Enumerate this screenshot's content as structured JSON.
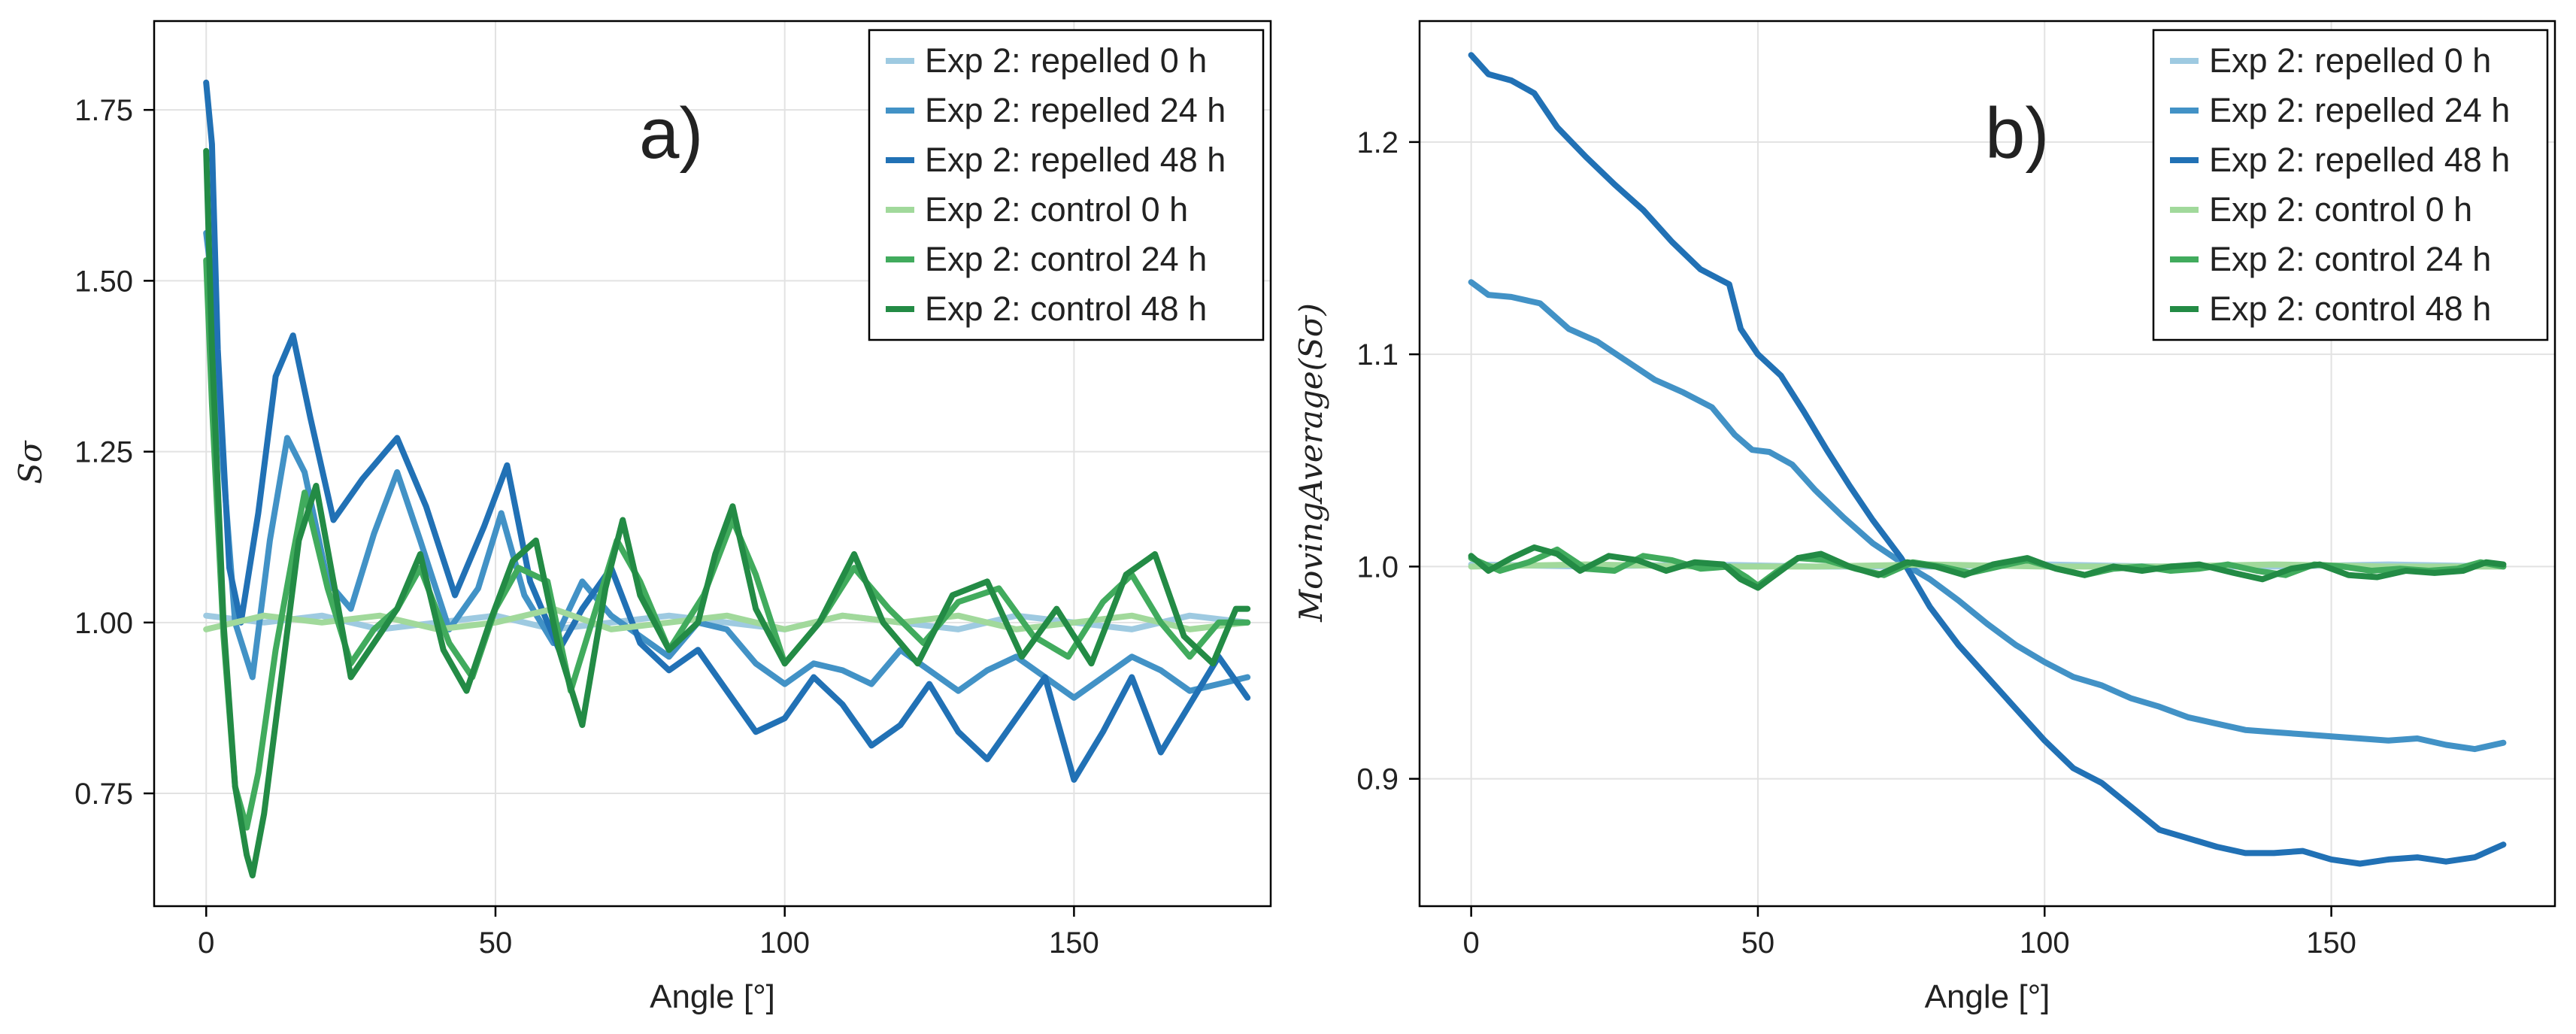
{
  "chart_data": [
    {
      "type": "line",
      "panel_label": "a)",
      "xlabel": "Angle [°]",
      "ylabel": "Sσ",
      "xlim": [
        -9,
        184
      ],
      "ylim": [
        0.585,
        1.88
      ],
      "xticks": [
        0,
        50,
        100,
        150
      ],
      "yticks": [
        0.75,
        1.0,
        1.25,
        1.5,
        1.75
      ],
      "ytick_labels": [
        "0.75",
        "1.00",
        "1.25",
        "1.50",
        "1.75"
      ],
      "grid": true,
      "legend_position": "top-right",
      "series": [
        {
          "name": "Exp 2: repelled 0 h",
          "color": "#9ecae1",
          "x": [
            0,
            10,
            20,
            30,
            40,
            50,
            60,
            70,
            80,
            90,
            100,
            110,
            120,
            130,
            140,
            150,
            160,
            170,
            180
          ],
          "y": [
            1.01,
            1.0,
            1.01,
            0.99,
            1.0,
            1.01,
            0.99,
            1.0,
            1.01,
            1.0,
            0.99,
            1.01,
            1.0,
            0.99,
            1.01,
            1.0,
            0.99,
            1.01,
            1.0
          ]
        },
        {
          "name": "Exp 2: repelled 24 h",
          "color": "#4292c6",
          "x": [
            0,
            1,
            3,
            5,
            8,
            11,
            14,
            17,
            21,
            25,
            29,
            33,
            37,
            42,
            47,
            51,
            55,
            60,
            65,
            70,
            75,
            80,
            85,
            90,
            95,
            100,
            105,
            110,
            115,
            120,
            125,
            130,
            135,
            140,
            145,
            150,
            155,
            160,
            165,
            170,
            175,
            180
          ],
          "y": [
            1.57,
            1.5,
            1.22,
            1.0,
            0.92,
            1.12,
            1.27,
            1.22,
            1.06,
            1.02,
            1.13,
            1.22,
            1.12,
            0.99,
            1.05,
            1.16,
            1.04,
            0.97,
            1.06,
            1.01,
            0.98,
            0.95,
            1.0,
            0.99,
            0.94,
            0.91,
            0.94,
            0.93,
            0.91,
            0.96,
            0.93,
            0.9,
            0.93,
            0.95,
            0.92,
            0.89,
            0.92,
            0.95,
            0.93,
            0.9,
            0.91,
            0.92
          ]
        },
        {
          "name": "Exp 2: repelled 48 h",
          "color": "#2171b5",
          "x": [
            0,
            1,
            2,
            4,
            6,
            9,
            12,
            15,
            18,
            22,
            27,
            33,
            38,
            43,
            48,
            52,
            56,
            61,
            65,
            70,
            75,
            80,
            85,
            90,
            95,
            100,
            105,
            110,
            115,
            120,
            125,
            130,
            135,
            140,
            145,
            150,
            155,
            160,
            165,
            170,
            175,
            180
          ],
          "y": [
            1.79,
            1.7,
            1.4,
            1.08,
            1.0,
            1.16,
            1.36,
            1.42,
            1.3,
            1.15,
            1.21,
            1.27,
            1.17,
            1.04,
            1.14,
            1.23,
            1.06,
            0.96,
            1.02,
            1.08,
            0.97,
            0.93,
            0.96,
            0.9,
            0.84,
            0.86,
            0.92,
            0.88,
            0.82,
            0.85,
            0.91,
            0.84,
            0.8,
            0.86,
            0.92,
            0.77,
            0.84,
            0.92,
            0.81,
            0.88,
            0.95,
            0.89
          ]
        },
        {
          "name": "Exp 2: control 0 h",
          "color": "#a1d99b",
          "x": [
            0,
            10,
            20,
            30,
            40,
            50,
            60,
            70,
            80,
            90,
            100,
            110,
            120,
            130,
            140,
            150,
            160,
            170,
            180
          ],
          "y": [
            0.99,
            1.01,
            1.0,
            1.01,
            0.99,
            1.0,
            1.02,
            0.99,
            1.0,
            1.01,
            0.99,
            1.01,
            1.0,
            1.01,
            0.99,
            1.0,
            1.01,
            0.99,
            1.0
          ]
        },
        {
          "name": "Exp 2: control 24 h",
          "color": "#41ab5d",
          "x": [
            0,
            1,
            3,
            5,
            7,
            9,
            12,
            15,
            17,
            21,
            25,
            29,
            33,
            37,
            42,
            46,
            50,
            54,
            59,
            63,
            67,
            71,
            75,
            80,
            86,
            91,
            95,
            100,
            106,
            112,
            118,
            124,
            130,
            137,
            143,
            149,
            155,
            160,
            165,
            170,
            175,
            180
          ],
          "y": [
            1.53,
            1.32,
            0.98,
            0.76,
            0.7,
            0.78,
            0.96,
            1.1,
            1.19,
            1.05,
            0.94,
            0.99,
            1.02,
            1.08,
            0.97,
            0.92,
            1.02,
            1.08,
            1.06,
            0.9,
            1.01,
            1.12,
            1.06,
            0.96,
            1.04,
            1.15,
            1.07,
            0.94,
            1.0,
            1.08,
            1.02,
            0.97,
            1.03,
            1.05,
            0.98,
            0.95,
            1.03,
            1.07,
            1.0,
            0.95,
            1.0,
            1.0
          ]
        },
        {
          "name": "Exp 2: control 48 h",
          "color": "#238b45",
          "x": [
            0,
            1,
            3,
            5,
            7,
            8,
            10,
            13,
            16,
            19,
            22,
            25,
            29,
            33,
            37,
            41,
            45,
            49,
            53,
            57,
            61,
            65,
            69,
            72,
            75,
            80,
            85,
            88,
            91,
            95,
            100,
            106,
            112,
            117,
            123,
            129,
            135,
            141,
            147,
            153,
            159,
            164,
            169,
            174,
            178,
            180
          ],
          "y": [
            1.69,
            1.4,
            1.0,
            0.76,
            0.66,
            0.63,
            0.72,
            0.92,
            1.12,
            1.2,
            1.06,
            0.92,
            0.97,
            1.02,
            1.1,
            0.96,
            0.9,
            1.0,
            1.09,
            1.12,
            0.96,
            0.85,
            1.05,
            1.15,
            1.04,
            0.96,
            1.0,
            1.1,
            1.17,
            1.02,
            0.94,
            1.0,
            1.1,
            1.0,
            0.94,
            1.04,
            1.06,
            0.95,
            1.02,
            0.94,
            1.07,
            1.1,
            0.98,
            0.94,
            1.02,
            1.02
          ]
        }
      ]
    },
    {
      "type": "line",
      "panel_label": "b)",
      "xlabel": "Angle [°]",
      "ylabel": "MovingAverage(Sσ)",
      "xlim": [
        -9,
        189
      ],
      "ylim": [
        0.84,
        1.257
      ],
      "xticks": [
        0,
        50,
        100,
        150
      ],
      "yticks": [
        0.9,
        1.0,
        1.1,
        1.2
      ],
      "ytick_labels": [
        "0.9",
        "1.0",
        "1.1",
        "1.2"
      ],
      "grid": true,
      "legend_position": "top-right",
      "series": [
        {
          "name": "Exp 2: repelled 0 h",
          "color": "#9ecae1",
          "x": [
            0,
            20,
            40,
            60,
            80,
            100,
            120,
            140,
            160,
            180
          ],
          "y": [
            1.001,
            1.0,
            1.001,
            1.0,
            1.0,
            1.001,
            1.0,
            1.0,
            1.001,
            1.0
          ]
        },
        {
          "name": "Exp 2: repelled 24 h",
          "color": "#4292c6",
          "x": [
            0,
            3,
            7,
            12,
            17,
            22,
            27,
            32,
            37,
            42,
            46,
            49,
            52,
            56,
            60,
            65,
            70,
            75,
            80,
            85,
            90,
            95,
            100,
            105,
            110,
            115,
            120,
            125,
            130,
            135,
            140,
            145,
            150,
            155,
            160,
            165,
            170,
            175,
            180
          ],
          "y": [
            1.134,
            1.128,
            1.127,
            1.124,
            1.112,
            1.106,
            1.097,
            1.088,
            1.082,
            1.075,
            1.062,
            1.055,
            1.054,
            1.048,
            1.036,
            1.023,
            1.011,
            1.002,
            0.994,
            0.984,
            0.973,
            0.963,
            0.955,
            0.948,
            0.944,
            0.938,
            0.934,
            0.929,
            0.926,
            0.923,
            0.922,
            0.921,
            0.92,
            0.919,
            0.918,
            0.919,
            0.916,
            0.914,
            0.917
          ]
        },
        {
          "name": "Exp 2: repelled 48 h",
          "color": "#2171b5",
          "x": [
            0,
            3,
            7,
            11,
            15,
            20,
            25,
            30,
            35,
            40,
            45,
            47,
            50,
            54,
            58,
            62,
            66,
            70,
            75,
            80,
            85,
            90,
            95,
            100,
            105,
            110,
            115,
            120,
            125,
            130,
            135,
            140,
            145,
            150,
            155,
            160,
            165,
            170,
            175,
            180
          ],
          "y": [
            1.241,
            1.232,
            1.229,
            1.223,
            1.207,
            1.193,
            1.18,
            1.168,
            1.153,
            1.14,
            1.133,
            1.112,
            1.1,
            1.09,
            1.073,
            1.055,
            1.038,
            1.022,
            1.004,
            0.981,
            0.963,
            0.948,
            0.933,
            0.918,
            0.905,
            0.898,
            0.887,
            0.876,
            0.872,
            0.868,
            0.865,
            0.865,
            0.866,
            0.862,
            0.86,
            0.862,
            0.863,
            0.861,
            0.863,
            0.869
          ]
        },
        {
          "name": "Exp 2: control 0 h",
          "color": "#a1d99b",
          "x": [
            0,
            20,
            40,
            60,
            80,
            100,
            120,
            140,
            160,
            180
          ],
          "y": [
            1.0,
            1.001,
            1.0,
            1.0,
            1.001,
            1.0,
            1.0,
            1.001,
            1.0,
            1.0
          ]
        },
        {
          "name": "Exp 2: control 24 h",
          "color": "#41ab5d",
          "x": [
            0,
            5,
            10,
            15,
            20,
            25,
            30,
            35,
            40,
            45,
            48,
            50,
            53,
            57,
            62,
            67,
            72,
            77,
            82,
            87,
            92,
            97,
            102,
            107,
            112,
            117,
            122,
            127,
            132,
            137,
            142,
            147,
            152,
            157,
            162,
            167,
            172,
            176,
            180
          ],
          "y": [
            1.004,
            0.998,
            1.002,
            1.008,
            0.999,
            0.998,
            1.005,
            1.003,
            0.999,
            1.0,
            0.995,
            0.991,
            0.997,
            1.004,
            1.003,
            0.999,
            0.996,
            1.002,
            1.0,
            0.997,
            1.0,
            1.003,
            0.999,
            0.996,
            0.999,
            1.0,
            0.998,
            0.999,
            1.001,
            0.998,
            0.996,
            1.001,
            1.0,
            0.998,
            0.999,
            0.998,
            0.999,
            1.002,
            1.0
          ]
        },
        {
          "name": "Exp 2: control 48 h",
          "color": "#238b45",
          "x": [
            0,
            3,
            7,
            11,
            15,
            19,
            24,
            29,
            34,
            39,
            44,
            47,
            50,
            53,
            57,
            61,
            66,
            71,
            76,
            81,
            86,
            91,
            97,
            102,
            107,
            112,
            117,
            122,
            127,
            133,
            138,
            143,
            148,
            153,
            158,
            163,
            168,
            173,
            177,
            180
          ],
          "y": [
            1.005,
            0.998,
            1.004,
            1.009,
            1.006,
            0.998,
            1.005,
            1.003,
            0.998,
            1.002,
            1.001,
            0.994,
            0.99,
            0.996,
            1.004,
            1.006,
            1.0,
            0.996,
            1.002,
            1.0,
            0.996,
            1.001,
            1.004,
            0.999,
            0.996,
            1.0,
            0.998,
            1.0,
            1.001,
            0.997,
            0.994,
            0.999,
            1.001,
            0.996,
            0.995,
            0.998,
            0.997,
            0.998,
            1.002,
            1.001
          ]
        }
      ]
    }
  ]
}
